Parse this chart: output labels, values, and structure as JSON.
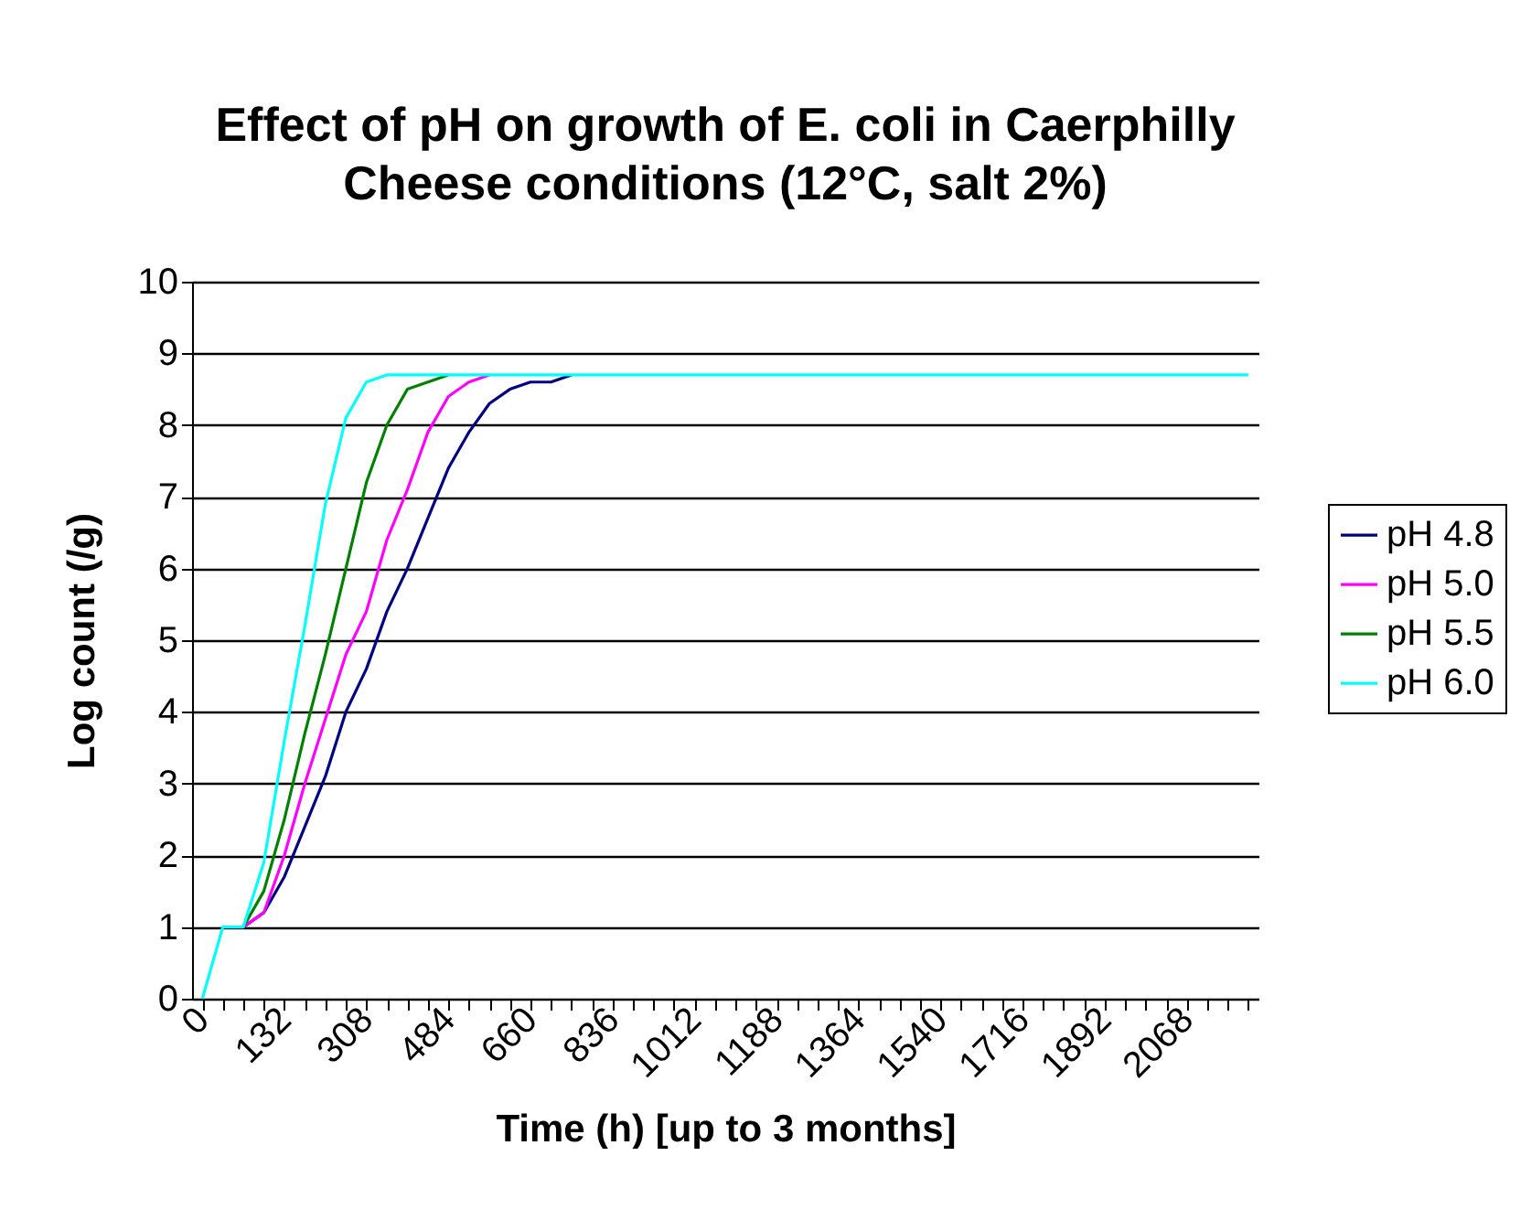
{
  "chart_data": {
    "type": "line",
    "title": "Effect of pH on growth of E. coli in Caerphilly Cheese conditions (12°C, salt 2%)",
    "xlabel": "Time (h) [up to 3 months]",
    "ylabel": "Log count (/g)",
    "categories": [
      "0",
      null,
      null,
      null,
      "132",
      null,
      null,
      null,
      "308",
      null,
      null,
      null,
      "484",
      null,
      null,
      null,
      "660",
      null,
      null,
      null,
      "836",
      null,
      null,
      null,
      "1012",
      null,
      null,
      null,
      "1188",
      null,
      null,
      null,
      "1364",
      null,
      null,
      null,
      "1540",
      null,
      null,
      null,
      "1716",
      null,
      null,
      null,
      "1892",
      null,
      null,
      null,
      "2068",
      null,
      null,
      null
    ],
    "ylim": [
      0,
      10
    ],
    "yticks": [
      0,
      1,
      2,
      3,
      4,
      5,
      6,
      7,
      8,
      9,
      10
    ],
    "grid": "y",
    "legend": "right",
    "marker": "none",
    "line_style": "solid",
    "series": [
      {
        "name": "pH 4.8",
        "color": "#000080",
        "values": [
          null,
          null,
          1,
          1.2,
          1.7,
          2.4,
          3.1,
          4,
          4.6,
          5.4,
          6,
          6.7,
          7.4,
          7.9,
          8.3,
          8.5,
          8.6,
          8.6,
          8.7,
          null,
          null,
          null,
          null,
          null,
          null,
          null,
          null,
          null,
          null,
          null,
          null,
          null,
          null,
          null,
          null,
          null,
          null,
          null,
          null,
          null,
          null,
          null,
          null,
          null,
          null,
          null,
          null,
          null,
          null,
          null,
          null,
          null
        ]
      },
      {
        "name": "pH 5.0",
        "color": "#ff00ff",
        "values": [
          null,
          null,
          1,
          1.2,
          2,
          3,
          3.9,
          4.8,
          5.4,
          6.4,
          7.1,
          7.9,
          8.4,
          8.6,
          8.7,
          null,
          null,
          null,
          null,
          null,
          null,
          null,
          null,
          null,
          null,
          null,
          null,
          null,
          null,
          null,
          null,
          null,
          null,
          null,
          null,
          null,
          null,
          null,
          null,
          null,
          null,
          null,
          null,
          null,
          null,
          null,
          null,
          null,
          null,
          null,
          null,
          null
        ]
      },
      {
        "name": "pH 5.5",
        "color": "#008000",
        "values": [
          null,
          null,
          1,
          1.5,
          2.5,
          3.7,
          4.8,
          6,
          7.2,
          8,
          8.5,
          8.6,
          8.7,
          null,
          null,
          null,
          null,
          null,
          null,
          null,
          null,
          null,
          null,
          null,
          null,
          null,
          null,
          null,
          null,
          null,
          null,
          null,
          null,
          null,
          null,
          null,
          null,
          null,
          null,
          null,
          null,
          null,
          null,
          null,
          null,
          null,
          null,
          null,
          null,
          null,
          null,
          null
        ]
      },
      {
        "name": "pH 6.0",
        "color": "#00ffff",
        "values": [
          0,
          1,
          1,
          1.9,
          3.6,
          5.2,
          6.9,
          8.1,
          8.6,
          8.7,
          8.7,
          8.7,
          8.7,
          8.7,
          8.7,
          8.7,
          8.7,
          8.7,
          8.7,
          8.7,
          8.7,
          8.7,
          8.7,
          8.7,
          8.7,
          8.7,
          8.7,
          8.7,
          8.7,
          8.7,
          8.7,
          8.7,
          8.7,
          8.7,
          8.7,
          8.7,
          8.7,
          8.7,
          8.7,
          8.7,
          8.7,
          8.7,
          8.7,
          8.7,
          8.7,
          8.7,
          8.7,
          8.7,
          8.7,
          8.7,
          8.7,
          8.7
        ]
      }
    ]
  }
}
